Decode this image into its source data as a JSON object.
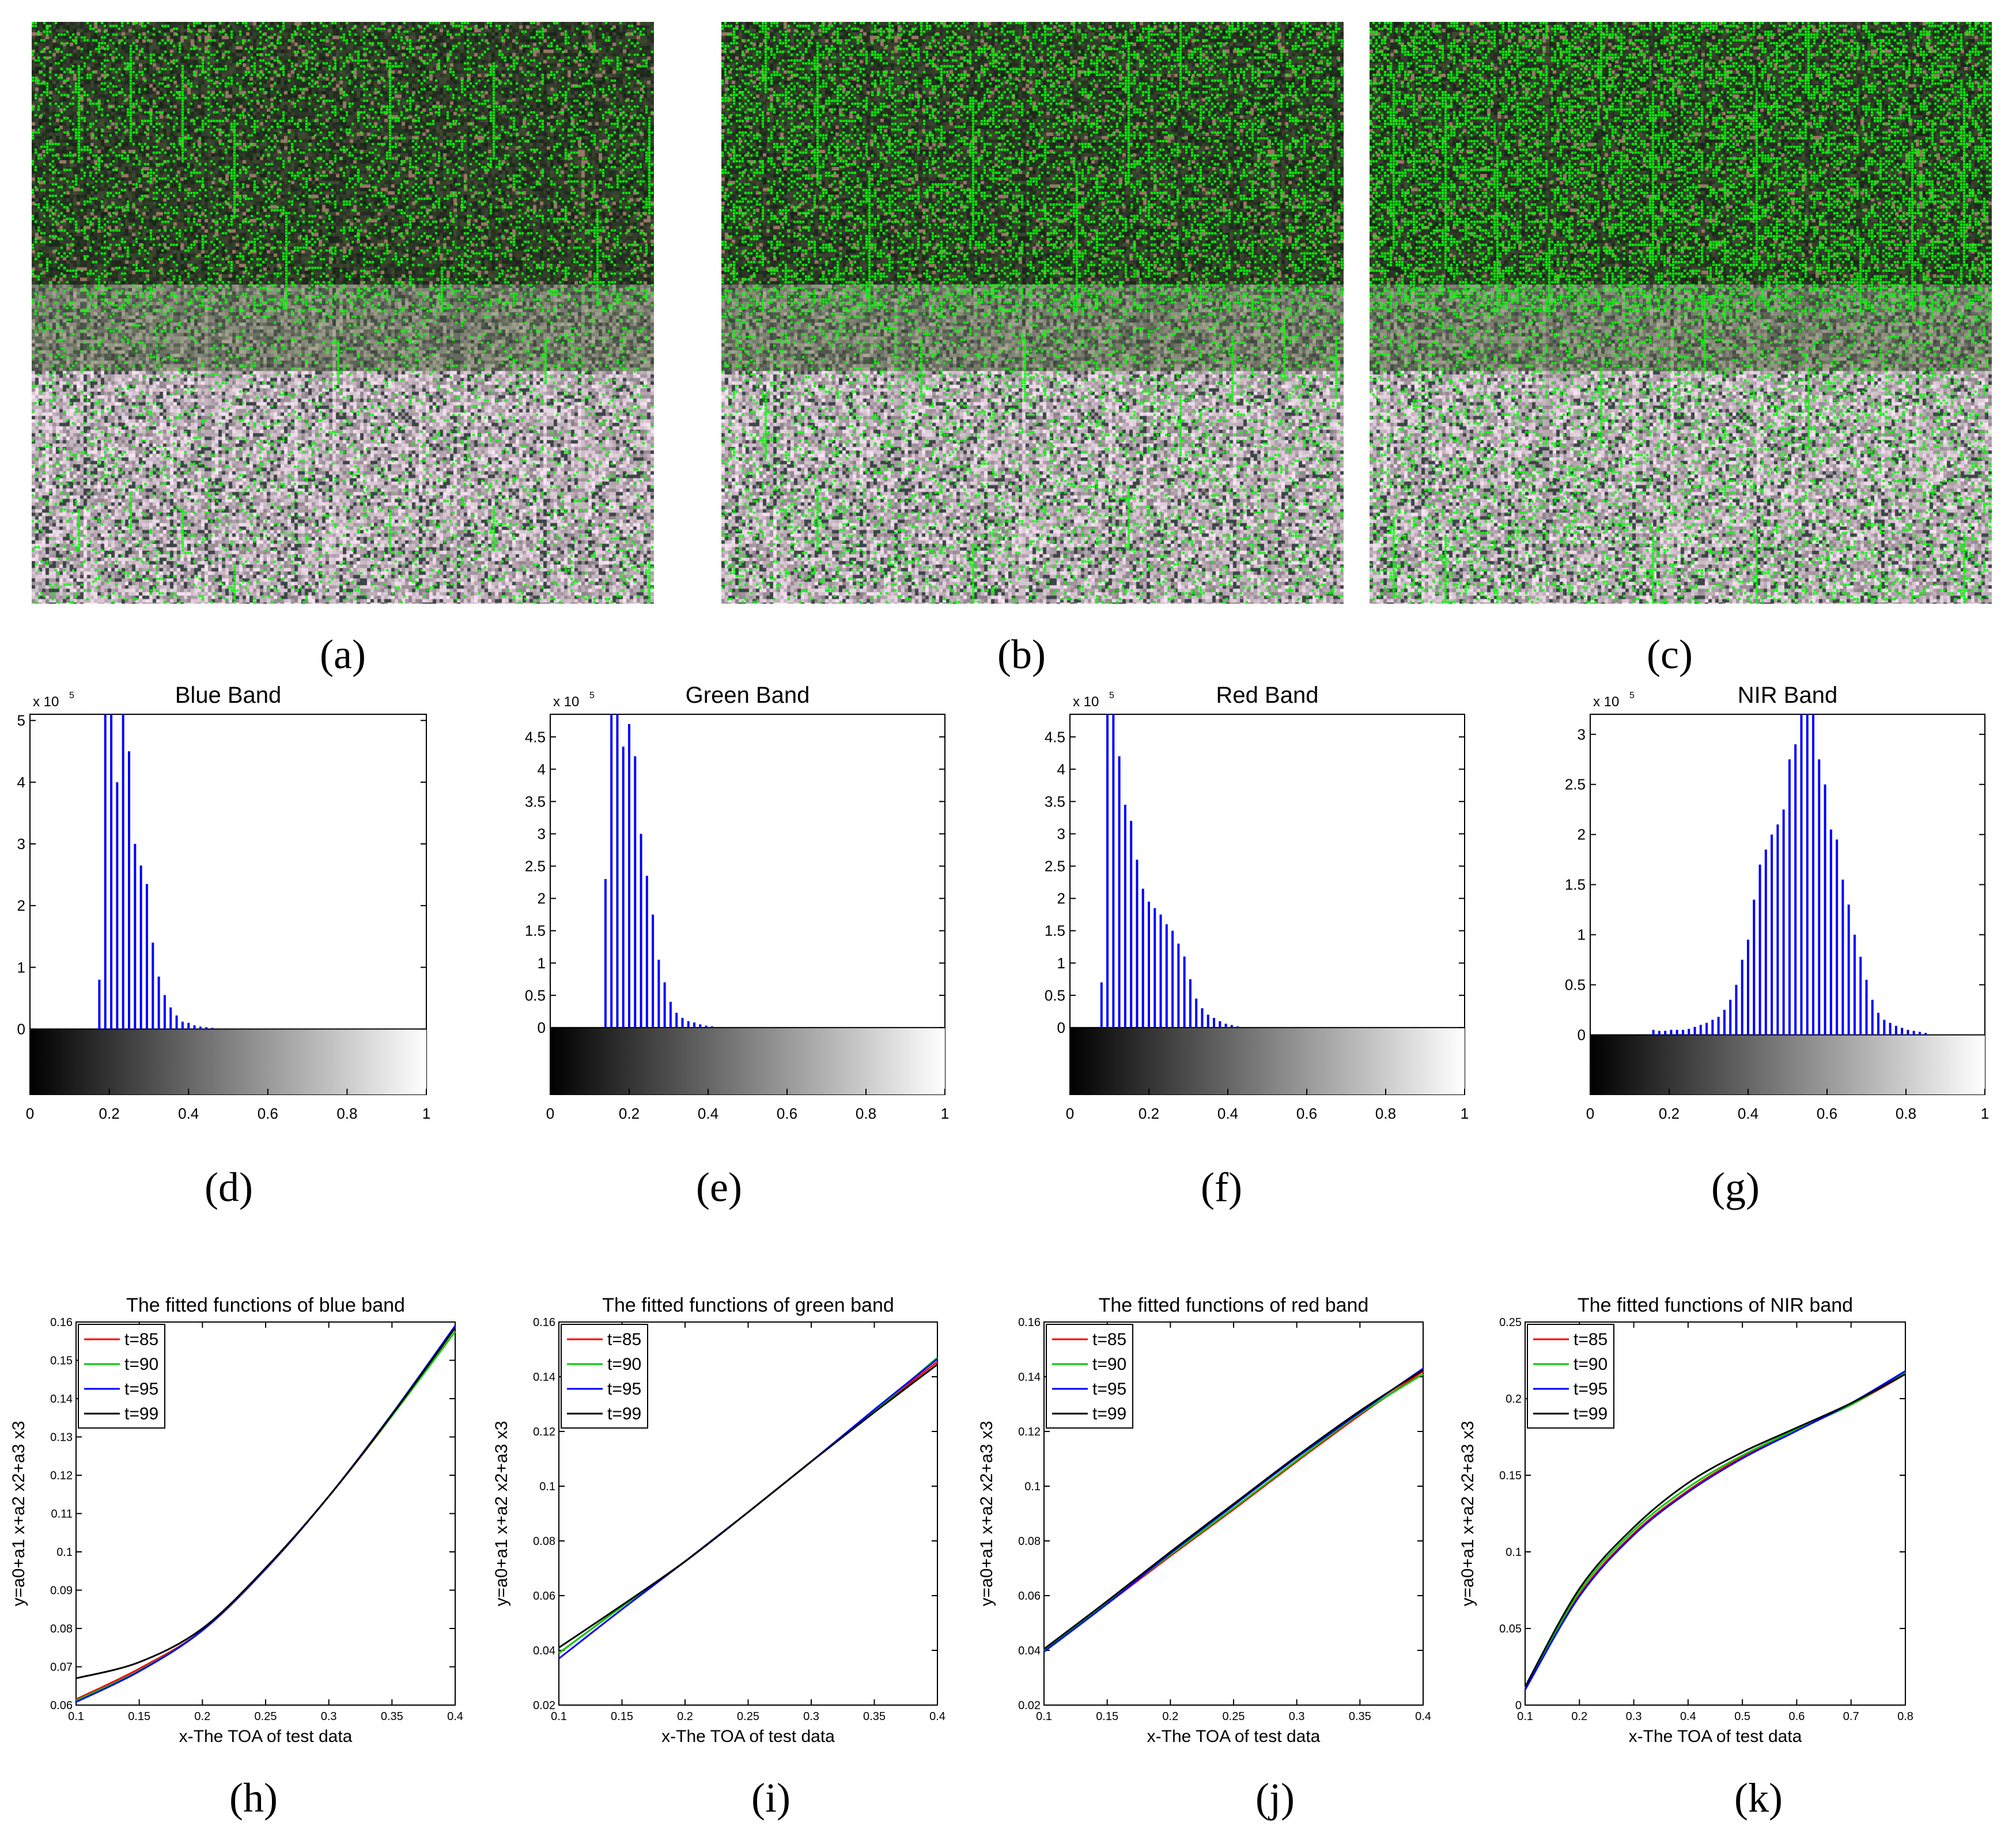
{
  "captions": [
    "(a)",
    "(b)",
    "(c)",
    "(d)",
    "(e)",
    "(f)",
    "(g)",
    "(h)",
    "(i)",
    "(j)",
    "(k)"
  ],
  "images": [
    {
      "name": "satellite-image-a",
      "green_density": 0.22
    },
    {
      "name": "satellite-image-b",
      "green_density": 0.32
    },
    {
      "name": "satellite-image-c",
      "green_density": 0.4
    }
  ],
  "colors": {
    "bar": "#0000ff",
    "t85": "#ff0000",
    "t90": "#00cc00",
    "t95": "#0000ff",
    "t99": "#000000",
    "marker": "#00ff00"
  },
  "chart_data": [
    {
      "type": "bar",
      "title": "Blue Band",
      "exponent_label": "x 10",
      "exponent_power": "5",
      "xlim": [
        0,
        1
      ],
      "ylim": [
        -0.5,
        5.1
      ],
      "xticks": [
        "0",
        "0.2",
        "0.4",
        "0.6",
        "0.8",
        "1"
      ],
      "yticks": [
        "0",
        "1",
        "2",
        "3",
        "4",
        "5"
      ],
      "x": [
        0.175,
        0.19,
        0.205,
        0.22,
        0.235,
        0.25,
        0.265,
        0.28,
        0.295,
        0.31,
        0.325,
        0.34,
        0.355,
        0.37,
        0.385,
        0.4,
        0.415,
        0.43,
        0.445,
        0.46
      ],
      "values": [
        0.8,
        5.1,
        5.1,
        4.0,
        5.1,
        4.5,
        3.0,
        2.65,
        2.35,
        1.4,
        0.85,
        0.55,
        0.35,
        0.22,
        0.12,
        0.1,
        0.06,
        0.04,
        0.03,
        0.02
      ]
    },
    {
      "type": "bar",
      "title": "Green Band",
      "exponent_label": "x 10",
      "exponent_power": "5",
      "xlim": [
        0,
        1
      ],
      "ylim": [
        -0.5,
        4.85
      ],
      "xticks": [
        "0",
        "0.2",
        "0.4",
        "0.6",
        "0.8",
        "1"
      ],
      "yticks": [
        "0",
        "0.5",
        "1",
        "1.5",
        "2",
        "2.5",
        "3",
        "3.5",
        "4",
        "4.5"
      ],
      "x": [
        0.14,
        0.155,
        0.17,
        0.185,
        0.2,
        0.215,
        0.23,
        0.245,
        0.26,
        0.275,
        0.29,
        0.305,
        0.32,
        0.335,
        0.35,
        0.365,
        0.38,
        0.395,
        0.41
      ],
      "values": [
        2.3,
        4.85,
        4.85,
        4.35,
        4.7,
        4.2,
        3.0,
        2.35,
        1.75,
        1.05,
        0.7,
        0.4,
        0.23,
        0.15,
        0.1,
        0.08,
        0.05,
        0.03,
        0.02
      ]
    },
    {
      "type": "bar",
      "title": "Red Band",
      "exponent_label": "x 10",
      "exponent_power": "5",
      "xlim": [
        0,
        1
      ],
      "ylim": [
        -0.5,
        4.85
      ],
      "xticks": [
        "0",
        "0.2",
        "0.4",
        "0.6",
        "0.8",
        "1"
      ],
      "yticks": [
        "0",
        "0.5",
        "1",
        "1.5",
        "2",
        "2.5",
        "3",
        "3.5",
        "4",
        "4.5"
      ],
      "x": [
        0.08,
        0.095,
        0.11,
        0.125,
        0.14,
        0.155,
        0.17,
        0.185,
        0.2,
        0.215,
        0.23,
        0.245,
        0.26,
        0.275,
        0.29,
        0.305,
        0.32,
        0.335,
        0.35,
        0.365,
        0.38,
        0.395,
        0.41,
        0.425
      ],
      "values": [
        0.7,
        4.85,
        4.85,
        4.2,
        3.45,
        3.2,
        2.6,
        2.15,
        1.95,
        1.85,
        1.75,
        1.6,
        1.5,
        1.3,
        1.1,
        0.75,
        0.45,
        0.3,
        0.2,
        0.15,
        0.1,
        0.06,
        0.04,
        0.02
      ]
    },
    {
      "type": "bar",
      "title": "NIR Band",
      "exponent_label": "x 10",
      "exponent_power": "5",
      "xlim": [
        0,
        1
      ],
      "ylim": [
        -0.25,
        3.2
      ],
      "xticks": [
        "0",
        "0.2",
        "0.4",
        "0.6",
        "0.8",
        "1"
      ],
      "yticks": [
        "0",
        "0.5",
        "1",
        "1.5",
        "2",
        "2.5",
        "3"
      ],
      "x": [
        0.16,
        0.175,
        0.19,
        0.205,
        0.22,
        0.235,
        0.25,
        0.265,
        0.28,
        0.295,
        0.31,
        0.325,
        0.34,
        0.355,
        0.37,
        0.385,
        0.4,
        0.415,
        0.43,
        0.445,
        0.46,
        0.475,
        0.49,
        0.505,
        0.52,
        0.535,
        0.55,
        0.565,
        0.58,
        0.595,
        0.61,
        0.625,
        0.64,
        0.655,
        0.67,
        0.685,
        0.7,
        0.715,
        0.73,
        0.745,
        0.76,
        0.775,
        0.79,
        0.805,
        0.82,
        0.835,
        0.85
      ],
      "values": [
        0.05,
        0.04,
        0.04,
        0.05,
        0.05,
        0.05,
        0.06,
        0.08,
        0.1,
        0.12,
        0.15,
        0.18,
        0.25,
        0.35,
        0.5,
        0.75,
        0.95,
        1.35,
        1.7,
        1.85,
        2.0,
        2.1,
        2.25,
        2.75,
        2.9,
        3.2,
        3.2,
        3.2,
        2.75,
        2.5,
        2.05,
        1.95,
        1.55,
        1.3,
        1.0,
        0.78,
        0.55,
        0.35,
        0.22,
        0.15,
        0.12,
        0.09,
        0.07,
        0.05,
        0.04,
        0.03,
        0.02
      ]
    },
    {
      "type": "line",
      "title": "The fitted functions of blue band",
      "xlabel": "x-The TOA of test data",
      "ylabel": "y=a0+a1 x+a2 x2+a3 x3",
      "xlim": [
        0.1,
        0.4
      ],
      "ylim": [
        0.06,
        0.16
      ],
      "xticks": [
        "0.1",
        "0.15",
        "0.2",
        "0.25",
        "0.3",
        "0.35",
        "0.4"
      ],
      "yticks": [
        "0.06",
        "0.07",
        "0.08",
        "0.09",
        "0.1",
        "0.11",
        "0.12",
        "0.13",
        "0.14",
        "0.15",
        "0.16"
      ],
      "legend": [
        "t=85",
        "t=90",
        "t=95",
        "t=99"
      ],
      "x": [
        0.1,
        0.15,
        0.2,
        0.25,
        0.3,
        0.35,
        0.4
      ],
      "series": [
        {
          "name": "t=85",
          "values": [
            0.0615,
            0.0695,
            0.0795,
            0.0955,
            0.1145,
            0.1355,
            0.1585
          ]
        },
        {
          "name": "t=90",
          "values": [
            0.0612,
            0.069,
            0.0795,
            0.0955,
            0.1145,
            0.1355,
            0.1575
          ]
        },
        {
          "name": "t=95",
          "values": [
            0.0608,
            0.0688,
            0.0795,
            0.0955,
            0.1145,
            0.136,
            0.159
          ]
        },
        {
          "name": "t=99",
          "values": [
            0.067,
            0.0712,
            0.08,
            0.0958,
            0.1145,
            0.1358,
            0.1585
          ]
        }
      ]
    },
    {
      "type": "line",
      "title": "The fitted functions of green band",
      "xlabel": "x-The TOA of test data",
      "ylabel": "y=a0+a1 x+a2 x2+a3 x3",
      "xlim": [
        0.1,
        0.4
      ],
      "ylim": [
        0.02,
        0.16
      ],
      "xticks": [
        "0.1",
        "0.15",
        "0.2",
        "0.25",
        "0.3",
        "0.35",
        "0.4"
      ],
      "yticks": [
        "0.02",
        "0.04",
        "0.06",
        "0.08",
        "0.1",
        "0.12",
        "0.14",
        "0.16"
      ],
      "legend": [
        "t=85",
        "t=90",
        "t=95",
        "t=99"
      ],
      "x": [
        0.1,
        0.15,
        0.2,
        0.25,
        0.3,
        0.35,
        0.4
      ],
      "series": [
        {
          "name": "t=85",
          "values": [
            0.039,
            0.056,
            0.0725,
            0.0905,
            0.109,
            0.1275,
            0.1455
          ]
        },
        {
          "name": "t=90",
          "values": [
            0.039,
            0.056,
            0.0725,
            0.0905,
            0.109,
            0.1275,
            0.147
          ]
        },
        {
          "name": "t=95",
          "values": [
            0.037,
            0.055,
            0.0725,
            0.0905,
            0.109,
            0.128,
            0.1465
          ]
        },
        {
          "name": "t=99",
          "values": [
            0.041,
            0.0565,
            0.0725,
            0.0905,
            0.109,
            0.127,
            0.1445
          ]
        }
      ]
    },
    {
      "type": "line",
      "title": "The fitted functions of red band",
      "xlabel": "x-The TOA of test data",
      "ylabel": "y=a0+a1 x+a2 x2+a3 x3",
      "xlim": [
        0.1,
        0.4
      ],
      "ylim": [
        0.02,
        0.16
      ],
      "xticks": [
        "0.1",
        "0.15",
        "0.2",
        "0.25",
        "0.3",
        "0.35",
        "0.4"
      ],
      "yticks": [
        "0.02",
        "0.04",
        "0.06",
        "0.08",
        "0.1",
        "0.12",
        "0.14",
        "0.16"
      ],
      "legend": [
        "t=85",
        "t=90",
        "t=95",
        "t=99"
      ],
      "x": [
        0.1,
        0.15,
        0.2,
        0.25,
        0.3,
        0.35,
        0.4
      ],
      "series": [
        {
          "name": "t=85",
          "values": [
            0.04,
            0.057,
            0.0745,
            0.0915,
            0.109,
            0.126,
            0.142
          ]
        },
        {
          "name": "t=90",
          "values": [
            0.04,
            0.0575,
            0.075,
            0.092,
            0.1095,
            0.1265,
            0.141
          ]
        },
        {
          "name": "t=95",
          "values": [
            0.0395,
            0.057,
            0.0755,
            0.093,
            0.1105,
            0.127,
            0.143
          ]
        },
        {
          "name": "t=99",
          "values": [
            0.0405,
            0.058,
            0.076,
            0.0935,
            0.111,
            0.1275,
            0.1425
          ]
        }
      ]
    },
    {
      "type": "line",
      "title": "The fitted functions of NIR band",
      "xlabel": "x-The TOA of test data",
      "ylabel": "y=a0+a1 x+a2 x2+a3 x3",
      "xlim": [
        0.1,
        0.8
      ],
      "ylim": [
        0,
        0.25
      ],
      "xticks": [
        "0.1",
        "0.2",
        "0.3",
        "0.4",
        "0.5",
        "0.6",
        "0.7",
        "0.8"
      ],
      "yticks": [
        "0",
        "0.05",
        "0.1",
        "0.15",
        "0.2",
        "0.25"
      ],
      "legend": [
        "t=85",
        "t=90",
        "t=95",
        "t=99"
      ],
      "x": [
        0.1,
        0.2,
        0.3,
        0.4,
        0.5,
        0.6,
        0.7,
        0.8
      ],
      "series": [
        {
          "name": "t=85",
          "values": [
            0.01,
            0.072,
            0.112,
            0.14,
            0.162,
            0.18,
            0.196,
            0.216
          ]
        },
        {
          "name": "t=90",
          "values": [
            0.011,
            0.074,
            0.114,
            0.142,
            0.163,
            0.18,
            0.196,
            0.217
          ]
        },
        {
          "name": "t=95",
          "values": [
            0.01,
            0.071,
            0.111,
            0.139,
            0.161,
            0.179,
            0.197,
            0.218
          ]
        },
        {
          "name": "t=99",
          "values": [
            0.012,
            0.076,
            0.116,
            0.145,
            0.165,
            0.181,
            0.197,
            0.216
          ]
        }
      ]
    }
  ]
}
